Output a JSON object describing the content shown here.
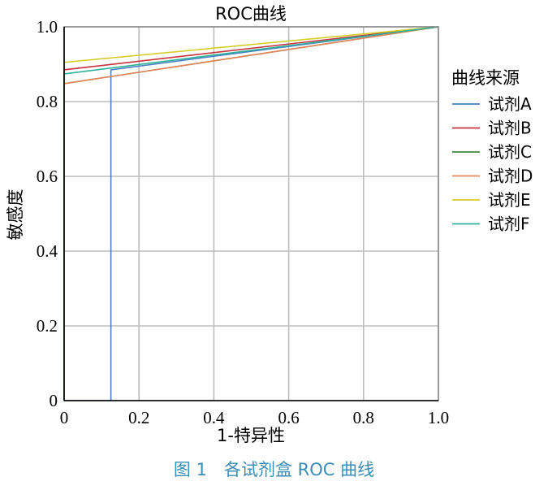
{
  "chart_data": {
    "type": "line",
    "title": "ROC曲线",
    "xlabel": "1-特异性",
    "ylabel": "敏感度",
    "xlim": [
      0,
      1
    ],
    "ylim": [
      0,
      1
    ],
    "x_ticks": [
      "0",
      "0.2",
      "0.4",
      "0.6",
      "0.8",
      "1.0"
    ],
    "y_ticks": [
      "0",
      "0.2",
      "0.4",
      "0.6",
      "0.8",
      "1.0"
    ],
    "grid": true,
    "legend": {
      "title": "曲线来源",
      "placement": "right"
    },
    "series": [
      {
        "name": "试剂A",
        "color": "#4a7fc1",
        "points": [
          [
            0,
            0
          ],
          [
            0.125,
            0
          ],
          [
            0.125,
            0.885
          ],
          [
            1,
            1
          ]
        ]
      },
      {
        "name": "试剂B",
        "color": "#c8323c",
        "points": [
          [
            0,
            0
          ],
          [
            0,
            0.885
          ],
          [
            1,
            1
          ]
        ]
      },
      {
        "name": "试剂C",
        "color": "#3f8a3f",
        "points": [
          [
            0,
            0
          ],
          [
            0,
            0.848
          ],
          [
            1,
            1
          ]
        ]
      },
      {
        "name": "试剂D",
        "color": "#e8865a",
        "points": [
          [
            0,
            0
          ],
          [
            0,
            0.848
          ],
          [
            1,
            1
          ]
        ]
      },
      {
        "name": "试剂E",
        "color": "#d6cc2a",
        "points": [
          [
            0,
            0
          ],
          [
            0,
            0.905
          ],
          [
            1,
            1
          ]
        ]
      },
      {
        "name": "试剂F",
        "color": "#2ab39a",
        "points": [
          [
            0,
            0
          ],
          [
            0,
            0.874
          ],
          [
            1,
            1
          ]
        ]
      }
    ]
  },
  "caption": "图 1　各试剂盒 ROC 曲线"
}
